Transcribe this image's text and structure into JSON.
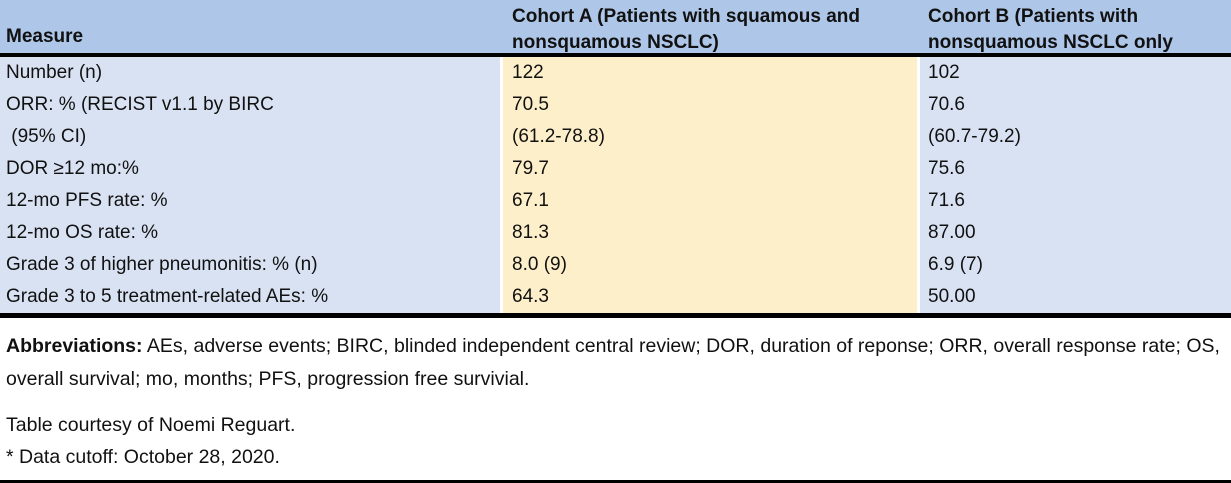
{
  "table": {
    "header": {
      "measure": "Measure",
      "cohort_a_line1": "Cohort A (Patients with squamous and",
      "cohort_a_line2": "nonsquamous NSCLC)",
      "cohort_b_line1": "Cohort B (Patients with",
      "cohort_b_line2": "nonsquamous NSCLC only"
    },
    "rows": [
      {
        "measure": "Number (n)",
        "cohort_a": "122",
        "cohort_b": "102"
      },
      {
        "measure": "ORR: % (RECIST v1.1 by BIRC",
        "cohort_a": "70.5",
        "cohort_b": "70.6"
      },
      {
        "measure": " (95% CI)",
        "cohort_a": "(61.2-78.8)",
        "cohort_b": "(60.7-79.2)"
      },
      {
        "measure": "DOR ≥12 mo:%",
        "cohort_a": "79.7",
        "cohort_b": "75.6"
      },
      {
        "measure": "12-mo PFS rate: %",
        "cohort_a": "67.1",
        "cohort_b": "71.6"
      },
      {
        "measure": "12-mo OS rate: %",
        "cohort_a": "81.3",
        "cohort_b": "87.00"
      },
      {
        "measure": "Grade 3 of higher pneumonitis: % (n)",
        "cohort_a": "8.0 (9)",
        "cohort_b": "6.9 (7)"
      },
      {
        "measure": "Grade 3 to 5 treatment-related AEs: %",
        "cohort_a": "64.3",
        "cohort_b": "50.00"
      }
    ]
  },
  "notes": {
    "abbreviations_label": "Abbreviations:",
    "abbreviations_text": " AEs, adverse events; BIRC, blinded independent central review; DOR, duration of reponse; ORR, overall response rate; OS, overall survival; mo, months; PFS, progression free survivial.",
    "courtesy": "Table courtesy of Noemi Reguart.",
    "data_cutoff": "* Data cutoff: October 28, 2020."
  },
  "colors": {
    "header_bg": "#AEC6E8",
    "row_bg_blue": "#D9E2F3",
    "row_bg_yellow": "#FDEFC9",
    "border": "#000000"
  }
}
